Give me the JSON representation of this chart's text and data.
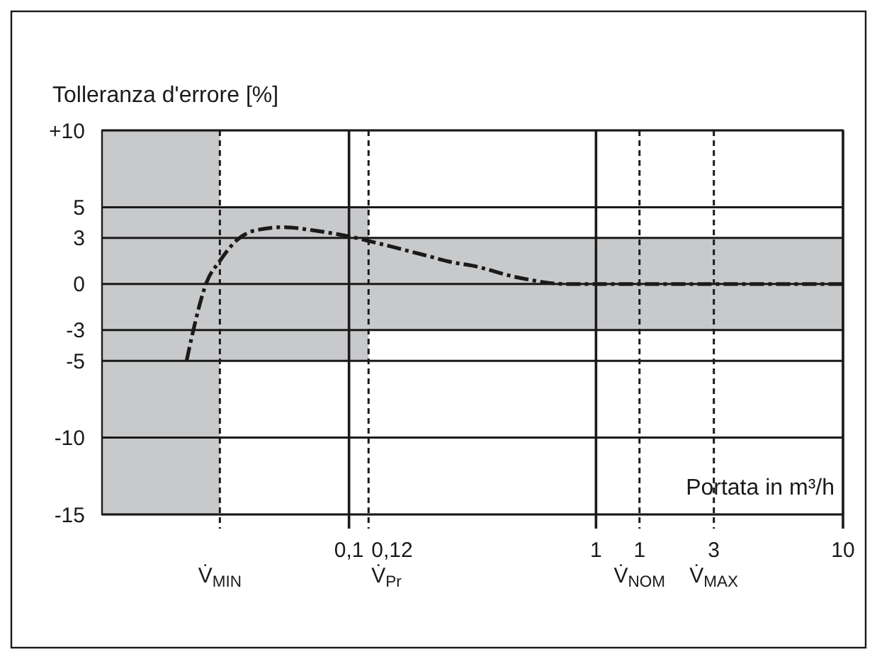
{
  "chart_data": {
    "type": "line",
    "ylabel": "Tolleranza d'errore [%]",
    "xlabel": "Portata in m³/h",
    "log": "x",
    "xlim": [
      0.01,
      10
    ],
    "ylim": [
      -15,
      10
    ],
    "xticks": [
      {
        "value": 0.1,
        "label": "0,1"
      },
      1,
      10
    ],
    "yticks": [
      {
        "value": 10,
        "label": "+10"
      },
      5,
      3,
      0,
      -3,
      -5,
      -10,
      -15
    ],
    "grid": true,
    "series": [
      {
        "type": "area",
        "color": "#c8c9cb",
        "x": [
          0.01,
          0.03,
          0.03,
          0.12,
          0.12,
          10
        ],
        "values": [
          10,
          10,
          5,
          5,
          3,
          3
        ]
      },
      {
        "type": "area",
        "color": "#c8c9cb",
        "x": [
          0.01,
          0.03,
          0.03,
          0.12,
          0.12,
          10
        ],
        "values": [
          -15,
          -15,
          -5,
          -5,
          -3,
          -3
        ]
      },
      {
        "color": "#1a1a1a",
        "line_style": "dashed",
        "x": [
          0.022,
          0.0232,
          0.0265,
          0.03,
          0.0354,
          0.042,
          0.0546,
          0.071,
          0.1,
          0.143,
          0.2,
          0.265,
          0.314,
          0.49,
          0.76,
          1,
          1.5,
          3,
          10
        ],
        "values": [
          -5,
          -3.3,
          0.1,
          1.5,
          2.9,
          3.5,
          3.7,
          3.5,
          3.1,
          2.5,
          1.9,
          1.4,
          1.2,
          0.4,
          0,
          0,
          0,
          0,
          0
        ]
      }
    ],
    "ref_lines": [
      {
        "axis": "x",
        "value": 0.03,
        "label": "V̇$_{MIN}$",
        "line_style": "dashed"
      },
      {
        "axis": "x",
        "value": 0.12,
        "label": "0,12\nV̇$_{Pr}$",
        "line_style": "dashed"
      },
      {
        "axis": "x",
        "value": 1.5,
        "label": "1\nV̇$_{NOM}$",
        "line_style": "dashed"
      },
      {
        "axis": "x",
        "value": 3,
        "label": "3\nV̇$_{MAX}$",
        "line_style": "dashed"
      }
    ]
  }
}
